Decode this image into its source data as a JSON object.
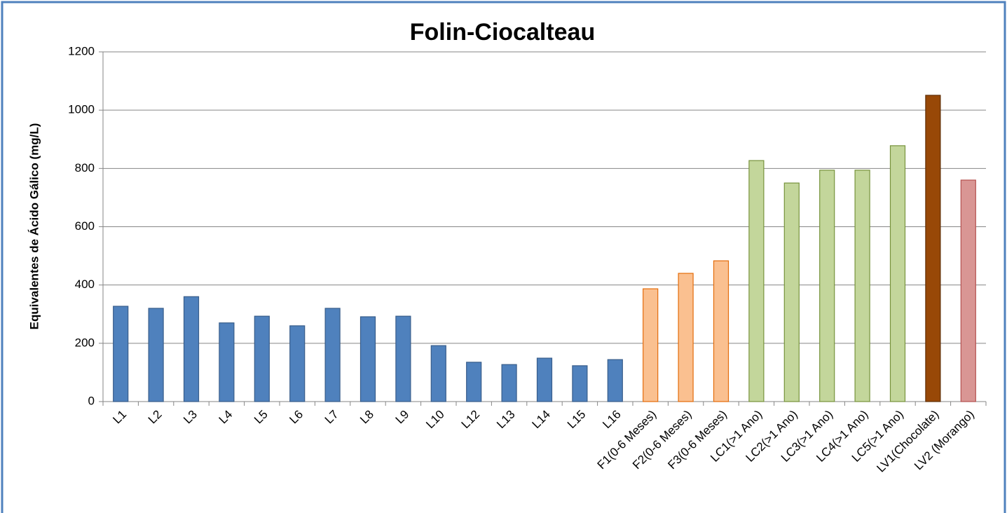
{
  "chart_data": {
    "type": "bar",
    "title": "Folin-Ciocalteau",
    "y_label": "Equivalentes de Ácido Gálico (mg/L)",
    "categories": [
      "L1",
      "L2",
      "L3",
      "L4",
      "L5",
      "L6",
      "L7",
      "L8",
      "L9",
      "L10",
      "L12",
      "L13",
      "L14",
      "L15",
      "L16",
      "F1(0-6 Meses)",
      "F2(0-6 Meses)",
      "F3(0-6 Meses)",
      "LC1(>1 Ano)",
      "LC2(>1 Ano)",
      "LC3(>1 Ano)",
      "LC4(>1 Ano)",
      "LC5(>1 Ano)",
      "LV1(Chocolate)",
      "LV2 (Morango)"
    ],
    "values": [
      327,
      320,
      360,
      270,
      293,
      260,
      320,
      291,
      293,
      192,
      135,
      127,
      149,
      123,
      144,
      387,
      440,
      483,
      827,
      750,
      794,
      794,
      878,
      1051,
      760
    ],
    "colors": [
      "#4f81bd",
      "#4f81bd",
      "#4f81bd",
      "#4f81bd",
      "#4f81bd",
      "#4f81bd",
      "#4f81bd",
      "#4f81bd",
      "#4f81bd",
      "#4f81bd",
      "#4f81bd",
      "#4f81bd",
      "#4f81bd",
      "#4f81bd",
      "#4f81bd",
      "#fac090",
      "#fac090",
      "#fac090",
      "#c3d69b",
      "#c3d69b",
      "#c3d69b",
      "#c3d69b",
      "#c3d69b",
      "#984807",
      "#d99694"
    ],
    "edge_colors": [
      "#385d8a",
      "#385d8a",
      "#385d8a",
      "#385d8a",
      "#385d8a",
      "#385d8a",
      "#385d8a",
      "#385d8a",
      "#385d8a",
      "#385d8a",
      "#385d8a",
      "#385d8a",
      "#385d8a",
      "#385d8a",
      "#385d8a",
      "#e46c0a",
      "#e46c0a",
      "#e46c0a",
      "#77933c",
      "#77933c",
      "#77933c",
      "#77933c",
      "#77933c",
      "#5e2d05",
      "#b4504f"
    ],
    "ylim": [
      0,
      1200
    ],
    "yticks": [
      0,
      200,
      400,
      600,
      800,
      1000,
      1200
    ],
    "grid": true
  }
}
